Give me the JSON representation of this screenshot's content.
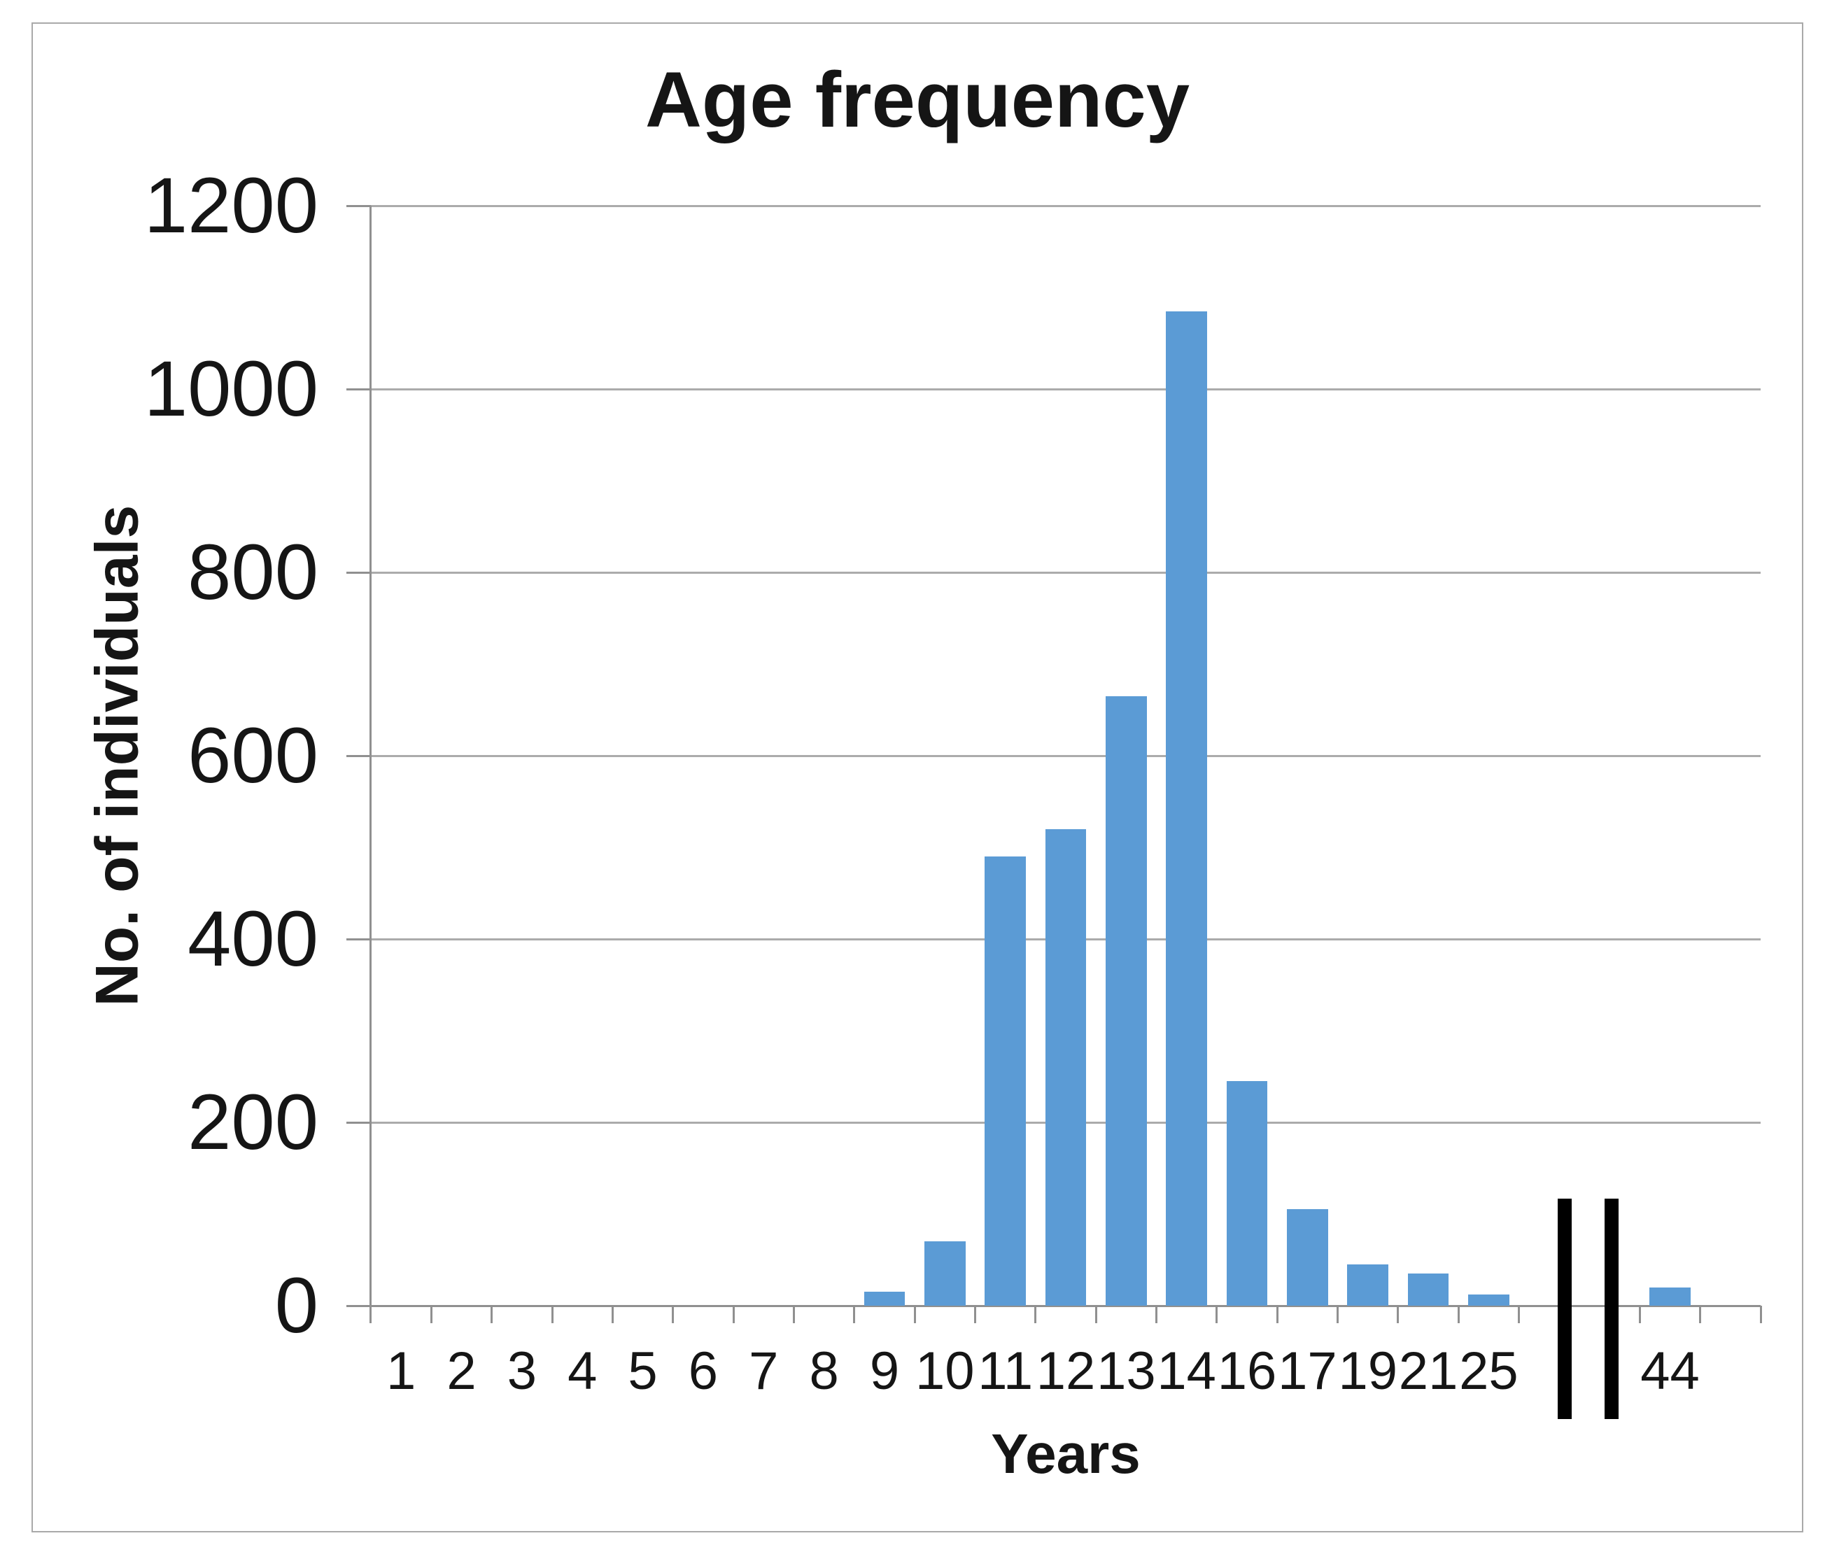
{
  "chart_data": {
    "type": "bar",
    "title": "Age frequency",
    "xlabel": "Years",
    "ylabel": "No. of individuals",
    "categories": [
      "1",
      "2",
      "3",
      "4",
      "5",
      "6",
      "7",
      "8",
      "9",
      "10",
      "11",
      "12",
      "13",
      "14",
      "16",
      "17",
      "19",
      "21",
      "25",
      "44"
    ],
    "values": [
      0,
      0,
      0,
      0,
      0,
      0,
      0,
      0,
      15,
      70,
      490,
      520,
      665,
      1085,
      245,
      105,
      45,
      35,
      12,
      20
    ],
    "ylim": [
      0,
      1200
    ],
    "ytick_step": 200,
    "ytick_labels": [
      "0",
      "200",
      "400",
      "600",
      "800",
      "1000",
      "1200"
    ],
    "grid": true,
    "legend": false,
    "axis_break": {
      "after_category": "25",
      "slot_span": 2,
      "style": "two-black-vertical-bars",
      "line_color": "#000000"
    },
    "trailing_empty_slots": 1
  },
  "colors": {
    "background": "#FFFFFF",
    "bar": "#5B9BD5",
    "gridline": "#ABABAB",
    "axis": "#909090",
    "chart_border": "#A9A9A9",
    "text": "#151515",
    "break_line": "#000000"
  }
}
